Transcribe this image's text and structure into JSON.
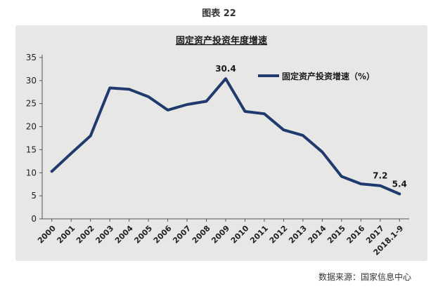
{
  "figure": {
    "caption": "图表 22",
    "source": "数据来源：国家信息中心"
  },
  "chart_data": {
    "type": "line",
    "title": "固定资产投资年度增速",
    "xlabel": "",
    "ylabel": "",
    "categories": [
      "2000",
      "2001",
      "2002",
      "2003",
      "2004",
      "2005",
      "2006",
      "2007",
      "2008",
      "2009",
      "2010",
      "2011",
      "2012",
      "2013",
      "2014",
      "2015",
      "2016",
      "2017",
      "2018.1-9"
    ],
    "series": [
      {
        "name": "固定资产投资增速（%）",
        "values": [
          10.3,
          14.2,
          18.0,
          28.4,
          28.1,
          26.5,
          23.6,
          24.8,
          25.5,
          30.4,
          23.3,
          22.8,
          19.3,
          18.1,
          14.5,
          9.2,
          7.6,
          7.2,
          5.4
        ],
        "color": "#1f3a6e"
      }
    ],
    "annotations": [
      {
        "category": "2009",
        "text": "30.4"
      },
      {
        "category": "2017",
        "text": "7.2"
      },
      {
        "category": "2018.1-9",
        "text": "5.4"
      }
    ],
    "ylim": [
      0,
      35
    ],
    "yticks": [
      0,
      5,
      10,
      15,
      20,
      25,
      30,
      35
    ],
    "grid": false,
    "legend_position": "top-right"
  }
}
